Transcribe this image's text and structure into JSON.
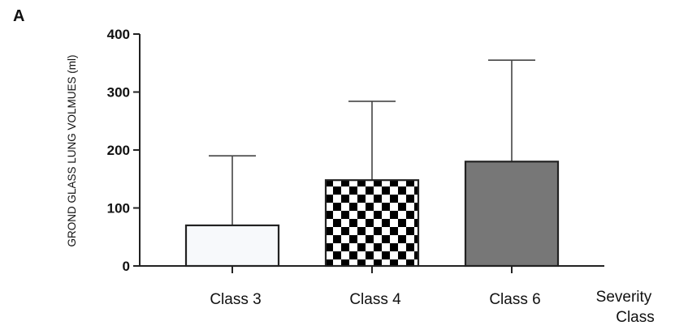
{
  "panel_label": "A",
  "chart_data": {
    "type": "bar",
    "title": "",
    "ylabel": "GROND GLASS  LUNG VOLMUES (ml)",
    "xlabel_lines": [
      "Severity",
      "Class"
    ],
    "categories": [
      "Class 3",
      "Class 4",
      "Class 6"
    ],
    "values": [
      70,
      148,
      180
    ],
    "error_upper": [
      190,
      284,
      355
    ],
    "fills": [
      "plain-light",
      "checkerboard",
      "gray"
    ],
    "colors": {
      "plain": "#f7f9fb",
      "check_dark": "#000000",
      "check_light": "#ffffff",
      "gray": "#777777",
      "stroke": "#222222"
    },
    "ylim": [
      0,
      400
    ],
    "yticks": [
      0,
      100,
      200,
      300,
      400
    ],
    "grid": false,
    "legend": "none"
  }
}
